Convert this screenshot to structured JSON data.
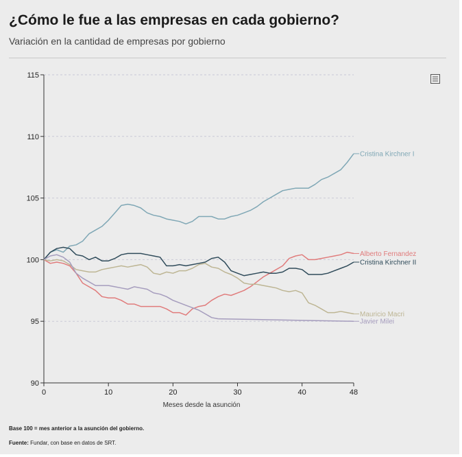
{
  "header": {
    "title": "¿Cómo le fue a las empresas en cada gobierno?",
    "subtitle": "Variación en la cantidad de empresas por gobierno"
  },
  "footer": {
    "note": "Base 100 = mes anterior a la asunción del gobierno.",
    "source_label": "Fuente:",
    "source_text": " Fundar, con base en datos de SRT."
  },
  "menu_icon": "hamburger-menu-icon",
  "chart_data": {
    "type": "line",
    "title": "¿Cómo le fue a las empresas en cada gobierno?",
    "subtitle": "Variación en la cantidad de empresas por gobierno",
    "xlabel": "Meses desde la asunción",
    "ylabel": "",
    "xlim": [
      0,
      48
    ],
    "ylim": [
      90,
      115
    ],
    "xticks": [
      0,
      10,
      20,
      30,
      40,
      48
    ],
    "yticks": [
      90,
      95,
      100,
      105,
      110,
      115
    ],
    "grid": "horizontal dotted",
    "legend": "end-of-line labels",
    "series": [
      {
        "name": "Cristina Kirchner I",
        "color": "#7fa7b5",
        "x": [
          0,
          1,
          2,
          3,
          4,
          5,
          6,
          7,
          8,
          9,
          10,
          11,
          12,
          13,
          14,
          15,
          16,
          17,
          18,
          19,
          20,
          21,
          22,
          23,
          24,
          25,
          26,
          27,
          28,
          29,
          30,
          31,
          32,
          33,
          34,
          35,
          36,
          37,
          38,
          39,
          40,
          41,
          42,
          43,
          44,
          45,
          46,
          47,
          48
        ],
        "values": [
          100,
          100.6,
          100.8,
          100.6,
          101.1,
          101.2,
          101.5,
          102.1,
          102.4,
          102.7,
          103.2,
          103.8,
          104.4,
          104.5,
          104.4,
          104.2,
          103.8,
          103.6,
          103.5,
          103.3,
          103.2,
          103.1,
          102.9,
          103.1,
          103.5,
          103.5,
          103.5,
          103.3,
          103.3,
          103.5,
          103.6,
          103.8,
          104.0,
          104.3,
          104.7,
          105.0,
          105.3,
          105.6,
          105.7,
          105.8,
          105.8,
          105.8,
          106.1,
          106.5,
          106.7,
          107.0,
          107.3,
          107.9,
          108.6
        ]
      },
      {
        "name": "Alberto Fernandez",
        "color": "#e07b7b",
        "x": [
          0,
          1,
          2,
          3,
          4,
          5,
          6,
          7,
          8,
          9,
          10,
          11,
          12,
          13,
          14,
          15,
          16,
          17,
          18,
          19,
          20,
          21,
          22,
          23,
          24,
          25,
          26,
          27,
          28,
          29,
          30,
          31,
          32,
          33,
          34,
          35,
          36,
          37,
          38,
          39,
          40,
          41,
          42,
          43,
          44,
          45,
          46,
          47,
          48
        ],
        "values": [
          100,
          99.7,
          99.8,
          99.7,
          99.5,
          98.9,
          98.1,
          97.8,
          97.5,
          97.0,
          96.9,
          96.9,
          96.7,
          96.4,
          96.4,
          96.2,
          96.2,
          96.2,
          96.2,
          96.0,
          95.7,
          95.7,
          95.5,
          96.0,
          96.2,
          96.3,
          96.7,
          97.0,
          97.2,
          97.1,
          97.3,
          97.5,
          97.8,
          98.2,
          98.6,
          98.9,
          99.2,
          99.5,
          100.1,
          100.3,
          100.4,
          100.0,
          100.0,
          100.1,
          100.2,
          100.3,
          100.4,
          100.6,
          100.5
        ]
      },
      {
        "name": "Cristina Kirchner II",
        "color": "#2f4b5a",
        "x": [
          0,
          1,
          2,
          3,
          4,
          5,
          6,
          7,
          8,
          9,
          10,
          11,
          12,
          13,
          14,
          15,
          16,
          17,
          18,
          19,
          20,
          21,
          22,
          23,
          24,
          25,
          26,
          27,
          28,
          29,
          30,
          31,
          32,
          33,
          34,
          35,
          36,
          37,
          38,
          39,
          40,
          41,
          42,
          43,
          44,
          45,
          46,
          47,
          48
        ],
        "values": [
          100,
          100.6,
          100.9,
          101.0,
          100.9,
          100.4,
          100.3,
          100.0,
          100.2,
          99.9,
          99.9,
          100.1,
          100.4,
          100.5,
          100.5,
          100.5,
          100.4,
          100.3,
          100.2,
          99.5,
          99.5,
          99.6,
          99.5,
          99.6,
          99.7,
          99.8,
          100.1,
          100.2,
          99.8,
          99.1,
          98.9,
          98.7,
          98.8,
          98.9,
          99.0,
          98.9,
          98.9,
          99.0,
          99.3,
          99.3,
          99.2,
          98.8,
          98.8,
          98.8,
          98.9,
          99.1,
          99.3,
          99.5,
          99.8
        ]
      },
      {
        "name": "Mauricio Macri",
        "color": "#bdb593",
        "x": [
          0,
          1,
          2,
          3,
          4,
          5,
          6,
          7,
          8,
          9,
          10,
          11,
          12,
          13,
          14,
          15,
          16,
          17,
          18,
          19,
          20,
          21,
          22,
          23,
          24,
          25,
          26,
          27,
          28,
          29,
          30,
          31,
          32,
          33,
          34,
          35,
          36,
          37,
          38,
          39,
          40,
          41,
          42,
          43,
          44,
          45,
          46,
          47,
          48
        ],
        "values": [
          100,
          99.9,
          100.0,
          99.9,
          99.6,
          99.2,
          99.1,
          99.0,
          99.0,
          99.2,
          99.3,
          99.4,
          99.5,
          99.4,
          99.5,
          99.6,
          99.4,
          98.9,
          98.8,
          99.0,
          98.9,
          99.1,
          99.1,
          99.3,
          99.6,
          99.7,
          99.4,
          99.3,
          99.0,
          98.8,
          98.5,
          98.1,
          98.0,
          98.0,
          97.9,
          97.8,
          97.7,
          97.5,
          97.4,
          97.5,
          97.3,
          96.5,
          96.3,
          96.0,
          95.7,
          95.7,
          95.8,
          95.7,
          95.6
        ]
      },
      {
        "name": "Javier Milei",
        "color": "#a59cbd",
        "x": [
          0,
          1,
          2,
          3,
          4,
          5,
          6,
          7,
          8,
          9,
          10,
          11,
          12,
          13,
          14,
          15,
          16,
          17,
          18,
          19,
          20,
          21,
          22,
          23,
          24,
          25,
          26,
          27
        ],
        "values": [
          100,
          100.3,
          100.4,
          100.2,
          99.8,
          98.9,
          98.5,
          98.2,
          97.9,
          97.9,
          97.9,
          97.8,
          97.7,
          97.6,
          97.8,
          97.7,
          97.6,
          97.3,
          97.2,
          97.0,
          96.7,
          96.5,
          96.3,
          96.1,
          95.9,
          95.6,
          95.3,
          95.2
        ]
      },
      {
        "name": "Javier Milei (ref)",
        "color": "#a59cbd",
        "x": [
          27,
          48
        ],
        "values": [
          95.2,
          95.0
        ]
      }
    ],
    "end_labels": [
      {
        "series": "Cristina Kirchner I",
        "text": "Cristina Kirchner I",
        "y": 108.6
      },
      {
        "series": "Alberto Fernandez",
        "text": "Alberto Fernandez",
        "y": 100.5
      },
      {
        "series": "Cristina Kirchner II",
        "text": "Cristina Kirchner II",
        "y": 99.8
      },
      {
        "series": "Mauricio Macri",
        "text": "Mauricio Macri",
        "y": 95.6
      },
      {
        "series": "Javier Milei",
        "text": "Javier Milei",
        "y": 95.0
      }
    ]
  }
}
